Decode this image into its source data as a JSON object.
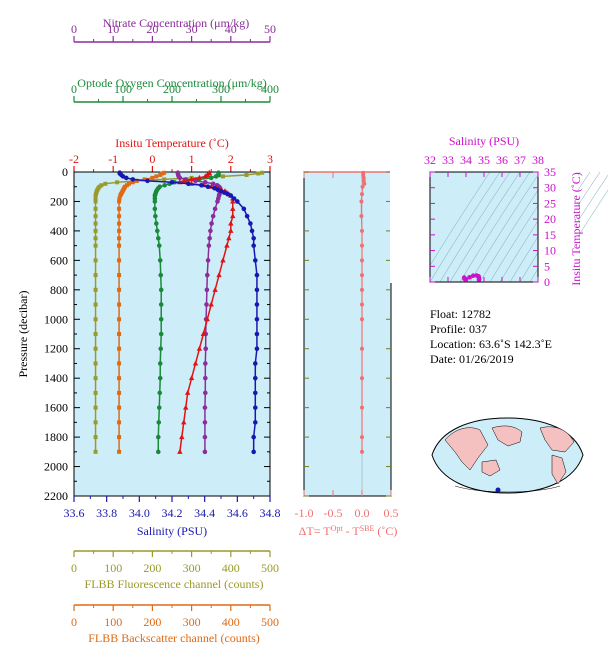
{
  "colors": {
    "nitrate": "#8b2d9b",
    "oxygen": "#1a8a3a",
    "temperature": "#e01414",
    "salinity_axis": "#1818b0",
    "fluorescence": "#9a9a2a",
    "backscatter": "#e06a14",
    "ts_axis": "#cc10cc",
    "dt_points": "#f07070",
    "plot_bg": "#cdeef8",
    "land": "#f5c0c0"
  },
  "main_panel": {
    "y_title": "Pressure (decibar)",
    "y_ticks": [
      "0",
      "200",
      "400",
      "600",
      "800",
      "1000",
      "1200",
      "1400",
      "1600",
      "1800",
      "2000",
      "2200"
    ],
    "axes": {
      "nitrate": {
        "title": "Nitrate Concentration (μm/kg)",
        "ticks": [
          "0",
          "10",
          "20",
          "30",
          "40",
          "50"
        ]
      },
      "oxygen": {
        "title": "Optode Oxygen Concentration (μm/kg)",
        "ticks": [
          "0",
          "100",
          "200",
          "300",
          "400"
        ]
      },
      "temperature": {
        "title": "Insitu Temperature (˚C)",
        "ticks": [
          "-2",
          "-1",
          "0",
          "1",
          "2",
          "3"
        ]
      },
      "salinity": {
        "title": "Salinity (PSU)",
        "ticks": [
          "33.6",
          "33.8",
          "34.0",
          "34.2",
          "34.4",
          "34.6",
          "34.8"
        ]
      },
      "fluorescence": {
        "title": "FLBB Fluorescence channel (counts)",
        "ticks": [
          "0",
          "100",
          "200",
          "300",
          "400",
          "500"
        ]
      },
      "backscatter": {
        "title": "FLBB Backscatter channel (counts)",
        "ticks": [
          "0",
          "100",
          "200",
          "300",
          "400",
          "500"
        ]
      }
    }
  },
  "dt_panel": {
    "title": "ΔT= T",
    "title_sup1": "Opt",
    "title_mid": " - T",
    "title_sup2": "SBE",
    "title_unit": " (˚C)",
    "x_ticks": [
      "-1.0",
      "-0.5",
      "0.0",
      "0.5"
    ]
  },
  "ts_panel": {
    "x_title": "Salinity (PSU)",
    "x_ticks": [
      "32",
      "33",
      "34",
      "35",
      "36",
      "37",
      "38"
    ],
    "y_title": "Insitu Temperature (˚C)",
    "y_ticks": [
      "0",
      "5",
      "10",
      "15",
      "20",
      "25",
      "30",
      "35"
    ]
  },
  "info": {
    "float": "Float:  12782",
    "profile": "Profile:  037",
    "location": "Location:  63.6˚S  142.3˚E",
    "date": "Date:  01/26/2019"
  },
  "chart_data": {
    "type": "scatter",
    "pressure": [
      5,
      10,
      20,
      30,
      40,
      50,
      60,
      70,
      80,
      90,
      100,
      110,
      120,
      130,
      140,
      150,
      160,
      180,
      200,
      250,
      300,
      350,
      400,
      450,
      500,
      600,
      700,
      800,
      900,
      1000,
      1100,
      1200,
      1300,
      1400,
      1500,
      1600,
      1700,
      1800,
      1900
    ],
    "series": [
      {
        "name": "Nitrate",
        "axis": "nitrate",
        "values": [
          26.5,
          26.5,
          26.6,
          26.7,
          27,
          28.5,
          31,
          33.5,
          35.5,
          36.5,
          37,
          37.3,
          37.4,
          37.3,
          37.2,
          37.1,
          37,
          36.8,
          36.6,
          36,
          35.5,
          35.1,
          34.8,
          34.6,
          34.4,
          34.2,
          34,
          33.9,
          33.8,
          33.7,
          33.6,
          33.6,
          33.5,
          33.5,
          33.5,
          33.4,
          33.4,
          33.4,
          33.4
        ]
      },
      {
        "name": "Optode Oxygen",
        "axis": "oxygen",
        "values": [
          295,
          295,
          295,
          290,
          280,
          255,
          230,
          205,
          195,
          185,
          175,
          172,
          170,
          168,
          167,
          166,
          165,
          165,
          165,
          165,
          166,
          168,
          170,
          172,
          174,
          176,
          177,
          178,
          178,
          178,
          178,
          177,
          176,
          176,
          175,
          174,
          173,
          172,
          172
        ]
      },
      {
        "name": "Insitu Temperature",
        "axis": "temperature",
        "values": [
          1.45,
          1.45,
          1.4,
          1.35,
          1.2,
          1.0,
          0.8,
          0.7,
          1.0,
          1.3,
          1.5,
          1.65,
          1.75,
          1.85,
          1.9,
          1.95,
          2.0,
          2.05,
          2.05,
          2.05,
          2.05,
          2.0,
          2.0,
          1.95,
          1.9,
          1.8,
          1.7,
          1.6,
          1.5,
          1.4,
          1.3,
          1.2,
          1.1,
          1.0,
          0.9,
          0.85,
          0.8,
          0.75,
          0.7
        ]
      },
      {
        "name": "Salinity",
        "axis": "salinity",
        "values": [
          33.88,
          33.88,
          33.89,
          33.9,
          33.92,
          33.96,
          34.05,
          34.2,
          34.3,
          34.38,
          34.42,
          34.46,
          34.48,
          34.5,
          34.52,
          34.54,
          34.56,
          34.58,
          34.6,
          34.64,
          34.66,
          34.68,
          34.69,
          34.7,
          34.7,
          34.71,
          34.72,
          34.72,
          34.72,
          34.72,
          34.72,
          34.72,
          34.71,
          34.71,
          34.71,
          34.71,
          34.71,
          34.7,
          34.7
        ]
      },
      {
        "name": "FLBB Fluorescence",
        "axis": "fluorescence",
        "values": [
          480,
          470,
          440,
          380,
          300,
          230,
          160,
          110,
          80,
          70,
          65,
          62,
          60,
          58,
          57,
          56,
          55,
          55,
          55,
          55,
          55,
          55,
          55,
          55,
          55,
          55,
          55,
          55,
          55,
          55,
          55,
          55,
          55,
          55,
          55,
          55,
          55,
          55,
          55
        ]
      },
      {
        "name": "FLBB Backscatter",
        "axis": "backscatter",
        "values": [
          230,
          225,
          220,
          210,
          200,
          180,
          160,
          150,
          140,
          135,
          130,
          128,
          126,
          124,
          122,
          120,
          118,
          116,
          115,
          115,
          115,
          115,
          115,
          115,
          115,
          115,
          115,
          115,
          115,
          115,
          115,
          115,
          115,
          115,
          115,
          115,
          115,
          115,
          115
        ]
      }
    ],
    "dt_series": {
      "name": "ΔT",
      "pressure": [
        5,
        20,
        40,
        60,
        80,
        100,
        150,
        200,
        300,
        400,
        500,
        600,
        700,
        800,
        900,
        1000,
        1200,
        1400,
        1600,
        1800,
        1900
      ],
      "values": [
        0.02,
        0.02,
        0.03,
        0.03,
        0.04,
        0.01,
        0.0,
        -0.01,
        -0.01,
        0.0,
        0.0,
        0.0,
        0.0,
        0.0,
        0.0,
        0.0,
        0.0,
        0.0,
        0.0,
        0.0,
        0.0
      ]
    },
    "ts_series": {
      "name": "T-S",
      "salinity": [
        33.9,
        33.92,
        34.0,
        34.2,
        34.4,
        34.6,
        34.7,
        34.72,
        34.72
      ],
      "temperature": [
        1.4,
        1.0,
        0.8,
        1.5,
        2.0,
        2.05,
        1.8,
        1.4,
        0.8
      ]
    },
    "xlim": {
      "nitrate": [
        0,
        50
      ],
      "oxygen": [
        0,
        400
      ],
      "temperature": [
        -2,
        3
      ],
      "salinity": [
        33.6,
        34.8
      ],
      "fluorescence": [
        0,
        500
      ],
      "backscatter": [
        0,
        500
      ],
      "dt": [
        -1.0,
        0.5
      ],
      "ts_sal": [
        32,
        38
      ],
      "ts_temp": [
        0,
        35
      ]
    },
    "ylim": [
      0,
      2200
    ]
  }
}
